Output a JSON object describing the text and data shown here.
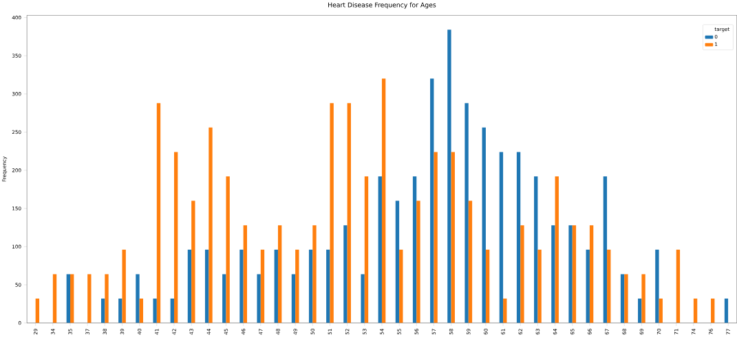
{
  "chart_data": {
    "type": "bar",
    "title": "Heart Disease Frequency for Ages",
    "ylabel": "Frequency",
    "legend_title": "target",
    "legend": "top right",
    "categories": [
      "29",
      "34",
      "35",
      "37",
      "38",
      "39",
      "40",
      "41",
      "42",
      "43",
      "44",
      "45",
      "46",
      "47",
      "48",
      "49",
      "50",
      "51",
      "52",
      "53",
      "54",
      "55",
      "56",
      "57",
      "58",
      "59",
      "60",
      "61",
      "62",
      "63",
      "64",
      "65",
      "66",
      "67",
      "68",
      "69",
      "70",
      "71",
      "74",
      "76",
      "77"
    ],
    "series": [
      {
        "name": "0",
        "color": "#1f77b4",
        "values": [
          0,
          0,
          64,
          0,
          32,
          32,
          64,
          32,
          32,
          96,
          96,
          64,
          96,
          64,
          96,
          64,
          96,
          96,
          128,
          64,
          192,
          160,
          192,
          320,
          384,
          288,
          256,
          224,
          224,
          192,
          128,
          128,
          96,
          192,
          64,
          32,
          96,
          0,
          0,
          0,
          32
        ]
      },
      {
        "name": "1",
        "color": "#ff7f0e",
        "values": [
          32,
          64,
          64,
          64,
          64,
          96,
          32,
          288,
          224,
          160,
          256,
          192,
          128,
          96,
          128,
          96,
          128,
          288,
          288,
          192,
          320,
          96,
          160,
          224,
          224,
          160,
          96,
          32,
          128,
          96,
          192,
          128,
          128,
          96,
          64,
          64,
          32,
          96,
          32,
          32,
          0
        ]
      }
    ],
    "ylim": [
      0,
      403
    ],
    "yticks": [
      0,
      50,
      100,
      150,
      200,
      250,
      300,
      350,
      400
    ]
  }
}
